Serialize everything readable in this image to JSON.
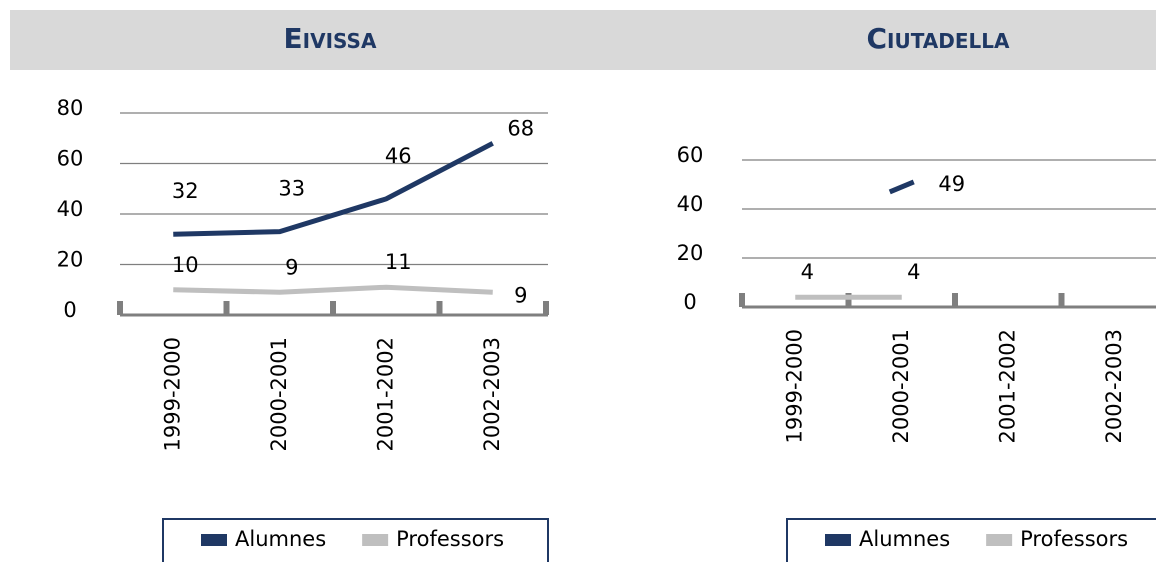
{
  "chart_data": [
    {
      "type": "line",
      "title": "Eivissa",
      "categories": [
        "1999-2000",
        "2000-2001",
        "2001-2002",
        "2002-2003"
      ],
      "series": [
        {
          "name": "Alumnes",
          "color": "#1f3864",
          "values": [
            32,
            33,
            46,
            68
          ]
        },
        {
          "name": "Professors",
          "color": "#bfbfbf",
          "values": [
            10,
            9,
            11,
            9
          ]
        }
      ],
      "ylim": [
        0,
        80
      ],
      "yticks": [
        0,
        20,
        40,
        60,
        80
      ],
      "grid": true,
      "legend": "bottom"
    },
    {
      "type": "line",
      "title": "Ciutadella",
      "categories": [
        "1999-2000",
        "2000-2001",
        "2001-2002",
        "2002-2003"
      ],
      "series": [
        {
          "name": "Alumnes",
          "color": "#1f3864",
          "values": [
            null,
            49,
            null,
            null
          ]
        },
        {
          "name": "Professors",
          "color": "#bfbfbf",
          "values": [
            4,
            4,
            null,
            null
          ]
        }
      ],
      "ylim": [
        0,
        60
      ],
      "yticks": [
        0,
        20,
        40,
        60
      ],
      "grid": true,
      "legend": "bottom"
    }
  ]
}
